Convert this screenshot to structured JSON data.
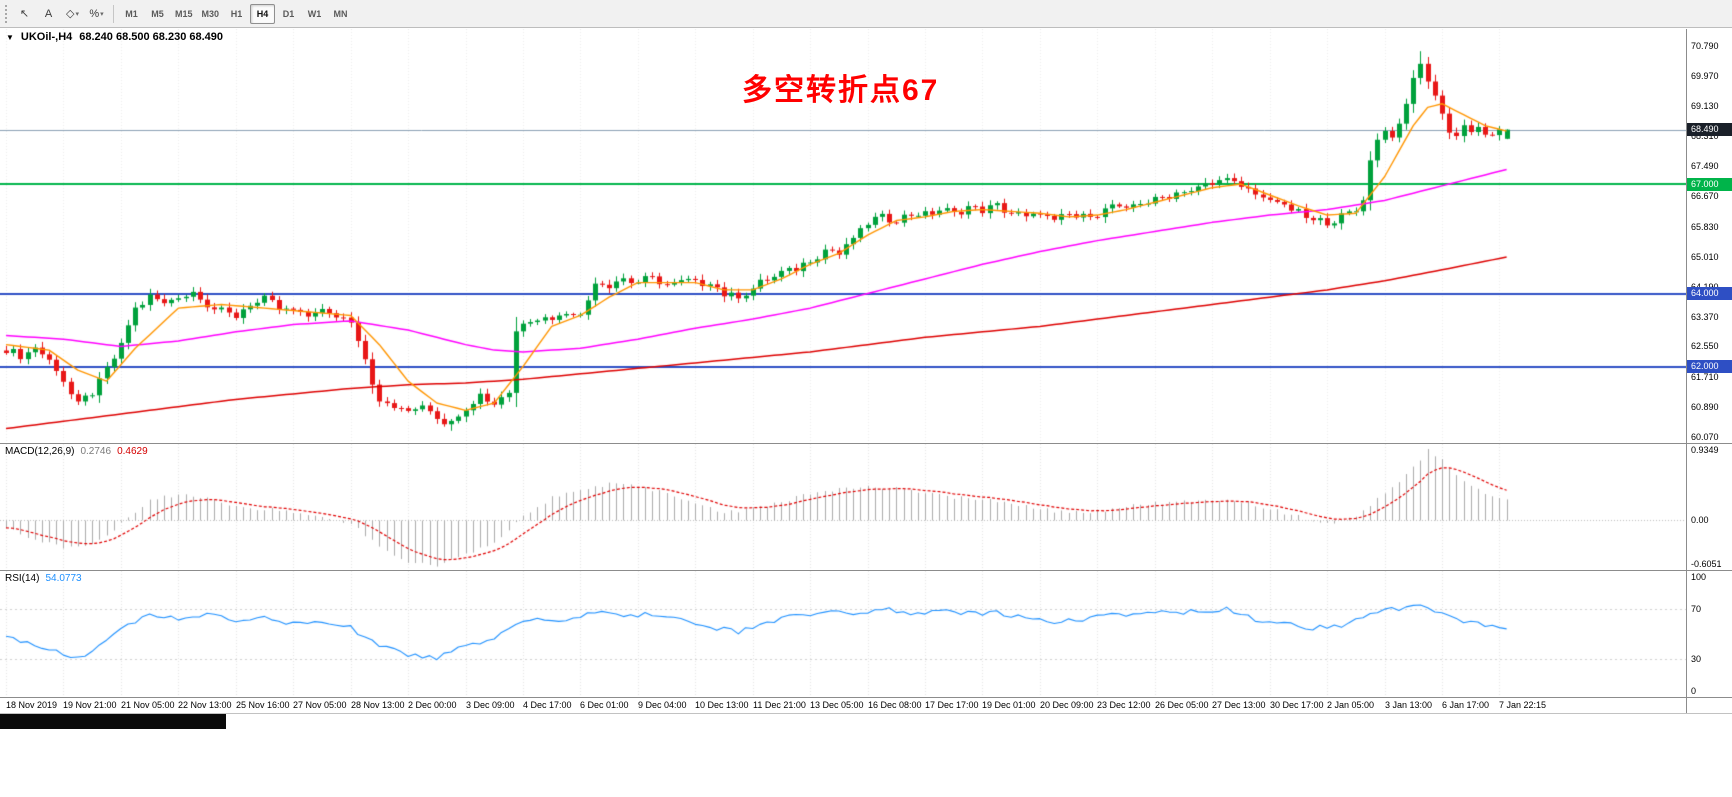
{
  "colors": {
    "up": "#00a13c",
    "down": "#e81717",
    "ma_fast": "#ff9500",
    "ma_mid": "#ff00ff",
    "ma_slow": "#dd0000",
    "macd_hist": "#ababab",
    "macd_signal": "#e00000",
    "rsi_line": "#1e90ff",
    "level_green": "#00b44a",
    "level_blue": "#2e4fc4",
    "current_price_line": "#8aa0b4",
    "annotation": "#ff0000"
  },
  "toolbar": {
    "left_buttons": [
      {
        "name": "cursor-tool-button",
        "glyph": "↖",
        "caret": false
      },
      {
        "name": "text-tool-button",
        "glyph": "A",
        "caret": false
      },
      {
        "name": "draw-tools-dropdown-button",
        "glyph": "◇",
        "caret": true
      },
      {
        "name": "fibonacci-dropdown-button",
        "glyph": "%",
        "caret": true
      }
    ],
    "timeframes": [
      {
        "label": "M1",
        "active": false
      },
      {
        "label": "M5",
        "active": false
      },
      {
        "label": "M15",
        "active": false
      },
      {
        "label": "M30",
        "active": false
      },
      {
        "label": "H1",
        "active": false
      },
      {
        "label": "H4",
        "active": true
      },
      {
        "label": "D1",
        "active": false
      },
      {
        "label": "W1",
        "active": false
      },
      {
        "label": "MN",
        "active": false
      }
    ]
  },
  "chart": {
    "symbol_period": "UKOil-,H4",
    "ohlc": "68.240 68.500 68.230 68.490",
    "annotation": "多空转折点67"
  },
  "macd_panel": {
    "name": "MACD(12,26,9)",
    "value_main": "0.2746",
    "value_signal": "0.4629",
    "scale": [
      {
        "label": "0.9349",
        "value": 0.9349
      },
      {
        "label": "0.00",
        "value": 0.0
      },
      {
        "label": "-0.6051",
        "value": -0.6051
      }
    ]
  },
  "rsi_panel": {
    "name": "RSI(14)",
    "value": "54.0773",
    "scale": [
      {
        "label": "100",
        "value": 100
      },
      {
        "label": "70",
        "value": 70
      },
      {
        "label": "30",
        "value": 30
      },
      {
        "label": "0",
        "value": 0
      }
    ]
  },
  "price_scale": {
    "ticks": [
      "70.790",
      "69.970",
      "69.130",
      "68.310",
      "67.490",
      "66.670",
      "65.830",
      "65.010",
      "64.190",
      "63.370",
      "62.550",
      "61.710",
      "60.890",
      "60.070"
    ],
    "badges": [
      {
        "name": "current-price-badge",
        "label": "68.490",
        "value": 68.49,
        "bg": "#1a2029"
      },
      {
        "name": "level-67-badge",
        "label": "67.000",
        "value": 67.0,
        "bg": "#00b44a"
      },
      {
        "name": "level-64-badge",
        "label": "64.000",
        "value": 64.0,
        "bg": "#2e4fc4"
      },
      {
        "name": "level-62-badge",
        "label": "62.000",
        "value": 62.0,
        "bg": "#2e4fc4"
      }
    ]
  },
  "time_labels": [
    "18 Nov 2019",
    "19 Nov 21:00",
    "21 Nov 05:00",
    "22 Nov 13:00",
    "25 Nov 16:00",
    "27 Nov 05:00",
    "28 Nov 13:00",
    "2 Dec 00:00",
    "3 Dec 09:00",
    "4 Dec 17:00",
    "6 Dec 01:00",
    "9 Dec 04:00",
    "10 Dec 13:00",
    "11 Dec 21:00",
    "13 Dec 05:00",
    "16 Dec 08:00",
    "17 Dec 17:00",
    "19 Dec 01:00",
    "20 Dec 09:00",
    "23 Dec 12:00",
    "26 Dec 05:00",
    "27 Dec 13:00",
    "30 Dec 17:00",
    "2 Jan 05:00",
    "3 Jan 13:00",
    "6 Jan 17:00",
    "7 Jan 22:15"
  ],
  "chart_data": {
    "type": "candlestick",
    "symbol": "UKOil-",
    "timeframe": "H4",
    "bars": 210,
    "x0": 6,
    "dx": 7.18,
    "grid_step_bars": 8,
    "price_ylim": [
      59.905,
      71.248
    ],
    "current_price": 68.49,
    "last_ohlc": {
      "open": 68.24,
      "high": 68.5,
      "low": 68.23,
      "close": 68.49
    },
    "levels": [
      {
        "value": 67.0,
        "color_key": "level_green",
        "width": 2
      },
      {
        "value": 64.0,
        "color_key": "level_blue",
        "width": 2
      },
      {
        "value": 62.0,
        "color_key": "level_blue",
        "width": 2
      }
    ],
    "close_anchors": [
      [
        0,
        62.45
      ],
      [
        2,
        62.3
      ],
      [
        4,
        62.5
      ],
      [
        6,
        62.2
      ],
      [
        8,
        61.6
      ],
      [
        10,
        60.95
      ],
      [
        12,
        61.3
      ],
      [
        14,
        61.9
      ],
      [
        16,
        62.6
      ],
      [
        18,
        63.6
      ],
      [
        20,
        63.9
      ],
      [
        22,
        63.75
      ],
      [
        24,
        63.9
      ],
      [
        26,
        64.05
      ],
      [
        28,
        63.7
      ],
      [
        30,
        63.5
      ],
      [
        32,
        63.4
      ],
      [
        34,
        63.7
      ],
      [
        36,
        63.85
      ],
      [
        38,
        63.6
      ],
      [
        40,
        63.5
      ],
      [
        42,
        63.4
      ],
      [
        44,
        63.55
      ],
      [
        46,
        63.35
      ],
      [
        48,
        63.3
      ],
      [
        50,
        62.2
      ],
      [
        52,
        61.0
      ],
      [
        54,
        60.9
      ],
      [
        56,
        60.75
      ],
      [
        58,
        61.0
      ],
      [
        60,
        60.6
      ],
      [
        62,
        60.45
      ],
      [
        64,
        60.9
      ],
      [
        66,
        61.2
      ],
      [
        68,
        61.0
      ],
      [
        70,
        61.3
      ],
      [
        71,
        63.0
      ],
      [
        72,
        63.2
      ],
      [
        74,
        63.35
      ],
      [
        76,
        63.3
      ],
      [
        78,
        63.5
      ],
      [
        80,
        63.4
      ],
      [
        82,
        64.3
      ],
      [
        84,
        64.25
      ],
      [
        86,
        64.4
      ],
      [
        88,
        64.3
      ],
      [
        90,
        64.45
      ],
      [
        92,
        64.2
      ],
      [
        94,
        64.35
      ],
      [
        96,
        64.3
      ],
      [
        98,
        64.3
      ],
      [
        100,
        64.0
      ],
      [
        102,
        63.9
      ],
      [
        104,
        64.15
      ],
      [
        106,
        64.4
      ],
      [
        108,
        64.55
      ],
      [
        110,
        64.7
      ],
      [
        112,
        64.9
      ],
      [
        114,
        65.2
      ],
      [
        116,
        65.1
      ],
      [
        118,
        65.5
      ],
      [
        120,
        65.95
      ],
      [
        122,
        66.1
      ],
      [
        124,
        66.0
      ],
      [
        126,
        66.2
      ],
      [
        128,
        66.15
      ],
      [
        130,
        66.3
      ],
      [
        132,
        66.2
      ],
      [
        134,
        66.35
      ],
      [
        136,
        66.3
      ],
      [
        138,
        66.4
      ],
      [
        140,
        66.2
      ],
      [
        142,
        66.1
      ],
      [
        144,
        66.2
      ],
      [
        146,
        66.0
      ],
      [
        148,
        66.15
      ],
      [
        150,
        66.1
      ],
      [
        152,
        66.2
      ],
      [
        154,
        66.4
      ],
      [
        156,
        66.3
      ],
      [
        158,
        66.5
      ],
      [
        160,
        66.55
      ],
      [
        162,
        66.7
      ],
      [
        164,
        66.8
      ],
      [
        166,
        66.9
      ],
      [
        168,
        67.0
      ],
      [
        170,
        67.2
      ],
      [
        172,
        66.9
      ],
      [
        174,
        66.7
      ],
      [
        176,
        66.6
      ],
      [
        178,
        66.4
      ],
      [
        180,
        66.2
      ],
      [
        182,
        66.0
      ],
      [
        184,
        65.95
      ],
      [
        186,
        66.1
      ],
      [
        188,
        66.3
      ],
      [
        189,
        66.6
      ],
      [
        190,
        67.6
      ],
      [
        191,
        68.3
      ],
      [
        192,
        68.45
      ],
      [
        193,
        68.3
      ],
      [
        194,
        68.6
      ],
      [
        195,
        69.2
      ],
      [
        196,
        69.9
      ],
      [
        197,
        70.25
      ],
      [
        198,
        69.9
      ],
      [
        199,
        69.4
      ],
      [
        200,
        68.9
      ],
      [
        201,
        68.5
      ],
      [
        202,
        68.3
      ],
      [
        203,
        68.6
      ],
      [
        204,
        68.4
      ],
      [
        205,
        68.55
      ],
      [
        206,
        68.35
      ],
      [
        207,
        68.3
      ],
      [
        208,
        68.45
      ],
      [
        209,
        68.49
      ]
    ],
    "ma_fast_anchors": [
      [
        0,
        62.6
      ],
      [
        6,
        62.45
      ],
      [
        10,
        61.9
      ],
      [
        14,
        61.6
      ],
      [
        18,
        62.5
      ],
      [
        24,
        63.6
      ],
      [
        30,
        63.7
      ],
      [
        36,
        63.6
      ],
      [
        42,
        63.5
      ],
      [
        48,
        63.4
      ],
      [
        52,
        62.6
      ],
      [
        56,
        61.6
      ],
      [
        60,
        61.0
      ],
      [
        64,
        60.8
      ],
      [
        68,
        61.0
      ],
      [
        72,
        62.0
      ],
      [
        76,
        63.1
      ],
      [
        80,
        63.4
      ],
      [
        84,
        63.9
      ],
      [
        88,
        64.3
      ],
      [
        92,
        64.3
      ],
      [
        96,
        64.3
      ],
      [
        100,
        64.1
      ],
      [
        104,
        64.1
      ],
      [
        108,
        64.4
      ],
      [
        112,
        64.8
      ],
      [
        116,
        65.1
      ],
      [
        120,
        65.6
      ],
      [
        124,
        66.0
      ],
      [
        128,
        66.1
      ],
      [
        132,
        66.25
      ],
      [
        136,
        66.3
      ],
      [
        140,
        66.25
      ],
      [
        144,
        66.2
      ],
      [
        148,
        66.1
      ],
      [
        152,
        66.15
      ],
      [
        156,
        66.3
      ],
      [
        160,
        66.5
      ],
      [
        164,
        66.7
      ],
      [
        168,
        66.9
      ],
      [
        172,
        67.0
      ],
      [
        176,
        66.7
      ],
      [
        180,
        66.4
      ],
      [
        184,
        66.15
      ],
      [
        188,
        66.2
      ],
      [
        192,
        67.2
      ],
      [
        194,
        67.9
      ],
      [
        196,
        68.6
      ],
      [
        198,
        69.1
      ],
      [
        200,
        69.2
      ],
      [
        203,
        68.9
      ],
      [
        206,
        68.6
      ],
      [
        209,
        68.45
      ]
    ],
    "ma_mid_anchors": [
      [
        0,
        62.85
      ],
      [
        8,
        62.75
      ],
      [
        16,
        62.55
      ],
      [
        24,
        62.7
      ],
      [
        32,
        62.95
      ],
      [
        40,
        63.15
      ],
      [
        48,
        63.25
      ],
      [
        56,
        63.0
      ],
      [
        64,
        62.6
      ],
      [
        68,
        62.45
      ],
      [
        72,
        62.4
      ],
      [
        80,
        62.5
      ],
      [
        88,
        62.75
      ],
      [
        96,
        63.05
      ],
      [
        104,
        63.3
      ],
      [
        112,
        63.6
      ],
      [
        120,
        64.0
      ],
      [
        128,
        64.4
      ],
      [
        136,
        64.8
      ],
      [
        144,
        65.15
      ],
      [
        152,
        65.45
      ],
      [
        160,
        65.7
      ],
      [
        168,
        65.95
      ],
      [
        176,
        66.15
      ],
      [
        184,
        66.3
      ],
      [
        192,
        66.55
      ],
      [
        200,
        66.95
      ],
      [
        209,
        67.4
      ]
    ],
    "ma_slow_anchors": [
      [
        0,
        60.3
      ],
      [
        8,
        60.5
      ],
      [
        16,
        60.7
      ],
      [
        24,
        60.9
      ],
      [
        32,
        61.1
      ],
      [
        40,
        61.25
      ],
      [
        48,
        61.4
      ],
      [
        56,
        61.5
      ],
      [
        64,
        61.55
      ],
      [
        72,
        61.65
      ],
      [
        80,
        61.8
      ],
      [
        88,
        61.95
      ],
      [
        96,
        62.1
      ],
      [
        104,
        62.25
      ],
      [
        112,
        62.4
      ],
      [
        120,
        62.6
      ],
      [
        128,
        62.8
      ],
      [
        136,
        62.95
      ],
      [
        144,
        63.1
      ],
      [
        152,
        63.3
      ],
      [
        160,
        63.5
      ],
      [
        168,
        63.7
      ],
      [
        176,
        63.9
      ],
      [
        184,
        64.1
      ],
      [
        192,
        64.35
      ],
      [
        200,
        64.65
      ],
      [
        209,
        65.0
      ]
    ],
    "macd": {
      "ylim": [
        -0.65,
        1.0
      ],
      "last_main": 0.2746,
      "last_signal": 0.4629,
      "hist_anchors": [
        [
          0,
          -0.1
        ],
        [
          4,
          -0.25
        ],
        [
          8,
          -0.35
        ],
        [
          12,
          -0.3
        ],
        [
          16,
          -0.05
        ],
        [
          20,
          0.25
        ],
        [
          24,
          0.35
        ],
        [
          28,
          0.3
        ],
        [
          32,
          0.18
        ],
        [
          36,
          0.15
        ],
        [
          40,
          0.1
        ],
        [
          44,
          0.05
        ],
        [
          48,
          -0.05
        ],
        [
          52,
          -0.35
        ],
        [
          56,
          -0.55
        ],
        [
          60,
          -0.6
        ],
        [
          64,
          -0.45
        ],
        [
          68,
          -0.3
        ],
        [
          72,
          0.05
        ],
        [
          76,
          0.3
        ],
        [
          80,
          0.4
        ],
        [
          84,
          0.48
        ],
        [
          88,
          0.45
        ],
        [
          92,
          0.35
        ],
        [
          96,
          0.2
        ],
        [
          100,
          0.1
        ],
        [
          104,
          0.15
        ],
        [
          108,
          0.25
        ],
        [
          112,
          0.35
        ],
        [
          116,
          0.4
        ],
        [
          120,
          0.45
        ],
        [
          124,
          0.42
        ],
        [
          128,
          0.35
        ],
        [
          132,
          0.3
        ],
        [
          136,
          0.28
        ],
        [
          140,
          0.22
        ],
        [
          144,
          0.15
        ],
        [
          148,
          0.1
        ],
        [
          152,
          0.12
        ],
        [
          156,
          0.18
        ],
        [
          160,
          0.22
        ],
        [
          164,
          0.25
        ],
        [
          168,
          0.28
        ],
        [
          172,
          0.25
        ],
        [
          176,
          0.15
        ],
        [
          180,
          0.05
        ],
        [
          184,
          -0.05
        ],
        [
          188,
          0.05
        ],
        [
          192,
          0.35
        ],
        [
          196,
          0.7
        ],
        [
          198,
          0.9
        ],
        [
          200,
          0.8
        ],
        [
          202,
          0.6
        ],
        [
          204,
          0.45
        ],
        [
          206,
          0.35
        ],
        [
          208,
          0.28
        ]
      ]
    },
    "rsi": {
      "ylim": [
        0,
        100
      ],
      "levels": [
        70,
        30
      ],
      "last": 54.0773,
      "anchors": [
        [
          0,
          48
        ],
        [
          3,
          42
        ],
        [
          6,
          38
        ],
        [
          9,
          33
        ],
        [
          12,
          35
        ],
        [
          16,
          55
        ],
        [
          20,
          65
        ],
        [
          24,
          62
        ],
        [
          28,
          66
        ],
        [
          32,
          60
        ],
        [
          36,
          63
        ],
        [
          40,
          58
        ],
        [
          44,
          60
        ],
        [
          48,
          55
        ],
        [
          52,
          40
        ],
        [
          56,
          34
        ],
        [
          60,
          31
        ],
        [
          64,
          40
        ],
        [
          68,
          45
        ],
        [
          71,
          58
        ],
        [
          74,
          62
        ],
        [
          78,
          60
        ],
        [
          82,
          67
        ],
        [
          86,
          64
        ],
        [
          90,
          66
        ],
        [
          94,
          62
        ],
        [
          98,
          55
        ],
        [
          102,
          52
        ],
        [
          106,
          60
        ],
        [
          110,
          64
        ],
        [
          114,
          68
        ],
        [
          118,
          66
        ],
        [
          122,
          70
        ],
        [
          126,
          67
        ],
        [
          130,
          68
        ],
        [
          134,
          66
        ],
        [
          138,
          67
        ],
        [
          142,
          62
        ],
        [
          146,
          60
        ],
        [
          150,
          62
        ],
        [
          154,
          65
        ],
        [
          158,
          66
        ],
        [
          162,
          67
        ],
        [
          166,
          68
        ],
        [
          170,
          70
        ],
        [
          174,
          62
        ],
        [
          178,
          58
        ],
        [
          182,
          55
        ],
        [
          186,
          57
        ],
        [
          190,
          66
        ],
        [
          194,
          70
        ],
        [
          197,
          73
        ],
        [
          200,
          65
        ],
        [
          203,
          60
        ],
        [
          206,
          57
        ],
        [
          208,
          55
        ],
        [
          209,
          54.08
        ]
      ]
    }
  }
}
